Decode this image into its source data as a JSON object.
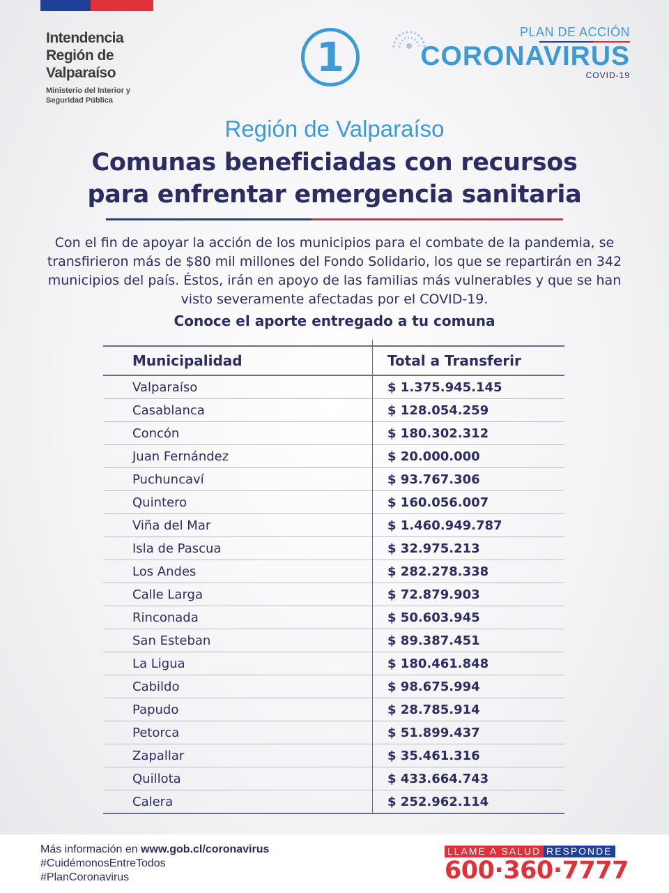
{
  "header": {
    "org_name": "Intendencia\nRegión de\nValparaíso",
    "org_sub": "Ministerio del Interior y\nSeguridad Pública",
    "step_number": "1",
    "plan_label": "PLAN DE ACCIÓN",
    "plan_title": "CORONAVIRUS",
    "plan_sub": "COVID-19"
  },
  "main": {
    "region": "Región de Valparaíso",
    "title_line1": "Comunas beneficiadas con recursos",
    "title_line2": "para enfrentar emergencia sanitaria",
    "intro": "Con el fin de apoyar la acción de los municipios para el combate de la pandemia, se transfirieron más de $80 mil millones del Fondo Solidario, los que se repartirán en 342 municipios del país. Éstos, irán en apoyo de las familias más vulnerables y que se han visto severamente afectadas por el COVID-19.",
    "subtitle": "Conoce el aporte entregado a tu comuna"
  },
  "table": {
    "headers": [
      "Municipalidad",
      "Total a Transferir"
    ],
    "rows": [
      [
        "Valparaíso",
        "$ 1.375.945.145"
      ],
      [
        "Casablanca",
        "$ 128.054.259"
      ],
      [
        "Concón",
        "$ 180.302.312"
      ],
      [
        "Juan Fernández",
        "$ 20.000.000"
      ],
      [
        "Puchuncaví",
        "$ 93.767.306"
      ],
      [
        "Quintero",
        "$ 160.056.007"
      ],
      [
        "Viña del Mar",
        "$ 1.460.949.787"
      ],
      [
        "Isla de Pascua",
        "$ 32.975.213"
      ],
      [
        "Los Andes",
        "$ 282.278.338"
      ],
      [
        "Calle Larga",
        "$ 72.879.903"
      ],
      [
        "Rinconada",
        "$ 50.603.945"
      ],
      [
        "San Esteban",
        "$ 89.387.451"
      ],
      [
        "La Ligua",
        "$ 180.461.848"
      ],
      [
        "Cabildo",
        "$ 98.675.994"
      ],
      [
        "Papudo",
        "$ 28.785.914"
      ],
      [
        "Petorca",
        "$ 51.899.437"
      ],
      [
        "Zapallar",
        "$ 35.461.316"
      ],
      [
        "Quillota",
        "$ 433.664.743"
      ],
      [
        "Calera",
        "$ 252.962.114"
      ]
    ]
  },
  "footer": {
    "more_info_prefix": "Más información en ",
    "more_info_link": "www.gob.cl/coronavirus",
    "hashtag1": "#CuidémonosEntreTodos",
    "hashtag2": "#PlanCoronavirus",
    "hotline_part1": "LLAME A SALUD",
    "hotline_part2": "RESPONDE",
    "phone": "600·360·7777"
  },
  "colors": {
    "navy": "#2b2d62",
    "light_blue": "#3d9ad9",
    "red": "#e0313a",
    "flag_blue": "#1f3f99"
  }
}
